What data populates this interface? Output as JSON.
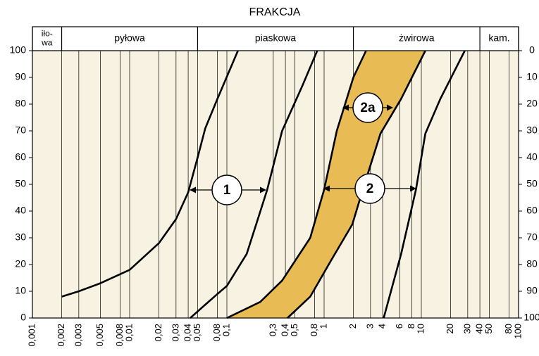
{
  "chart_data": {
    "type": "line",
    "title": "FRAKCJA",
    "x_scale": "log",
    "xlim": [
      0.001,
      100
    ],
    "xticks": [
      {
        "value": 0.001,
        "label": "0,001"
      },
      {
        "value": 0.002,
        "label": "0,002"
      },
      {
        "value": 0.003,
        "label": "0,003"
      },
      {
        "value": 0.005,
        "label": "0,005"
      },
      {
        "value": 0.008,
        "label": "0,008"
      },
      {
        "value": 0.01,
        "label": "0,01"
      },
      {
        "value": 0.02,
        "label": "0,02"
      },
      {
        "value": 0.03,
        "label": "0,03"
      },
      {
        "value": 0.04,
        "label": "0,04"
      },
      {
        "value": 0.05,
        "label": "0,05"
      },
      {
        "value": 0.08,
        "label": "0,08"
      },
      {
        "value": 0.1,
        "label": "0,1"
      },
      {
        "value": 0.3,
        "label": "0,3"
      },
      {
        "value": 0.4,
        "label": "0,4"
      },
      {
        "value": 0.5,
        "label": "0,5"
      },
      {
        "value": 0.8,
        "label": "0,8"
      },
      1,
      2,
      3,
      4,
      6,
      8,
      10,
      20,
      30,
      40,
      50,
      80,
      100
    ],
    "ylim": [
      0,
      100
    ],
    "yticks": [
      0,
      10,
      20,
      30,
      40,
      50,
      60,
      70,
      80,
      90,
      100
    ],
    "y2lim": [
      100,
      0
    ],
    "y2ticks": [
      0,
      10,
      20,
      30,
      40,
      50,
      60,
      70,
      80,
      90,
      100
    ],
    "grid": true,
    "background": "#f7f2e1",
    "fraction_bounds": [
      0.001,
      0.002,
      0.05,
      2,
      40,
      100
    ],
    "fractions": [
      [
        "iło-",
        "wa"
      ],
      [
        "pyłowa"
      ],
      [
        "piaskowa"
      ],
      [
        "żwirowa"
      ],
      [
        "kam."
      ]
    ],
    "band": {
      "series": [
        2,
        3
      ],
      "color": "#e9bb55"
    },
    "series": [
      {
        "color": "#000000",
        "x": [
          0.002,
          0.003,
          0.005,
          0.01,
          0.02,
          0.03,
          0.04,
          0.05,
          0.06,
          0.08,
          0.13
        ],
        "values": [
          8,
          10,
          13,
          18,
          28,
          37,
          47,
          60,
          71,
          82,
          100
        ]
      },
      {
        "color": "#000000",
        "x": [
          0.042,
          0.06,
          0.08,
          0.1,
          0.16,
          0.2,
          0.26,
          0.37,
          0.6,
          0.85
        ],
        "values": [
          0,
          5,
          9,
          12,
          24,
          35,
          48,
          70,
          87,
          100
        ]
      },
      {
        "color": "#000000",
        "x": [
          0.1,
          0.22,
          0.37,
          0.72,
          1.0,
          1.35,
          2.0,
          2.7
        ],
        "values": [
          0,
          6,
          14,
          30,
          48,
          70,
          90,
          100
        ]
      },
      {
        "color": "#000000",
        "x": [
          0.42,
          0.72,
          1.2,
          1.95,
          2.5,
          3.8,
          6.2,
          11
        ],
        "values": [
          0,
          8,
          22,
          35,
          48,
          69,
          82,
          100
        ]
      },
      {
        "color": "#000000",
        "x": [
          4.1,
          6.2,
          8.8,
          11,
          15.7,
          28
        ],
        "values": [
          0,
          24,
          48,
          69,
          82,
          100
        ]
      }
    ],
    "annotations": [
      "1",
      "2",
      "2a"
    ]
  }
}
